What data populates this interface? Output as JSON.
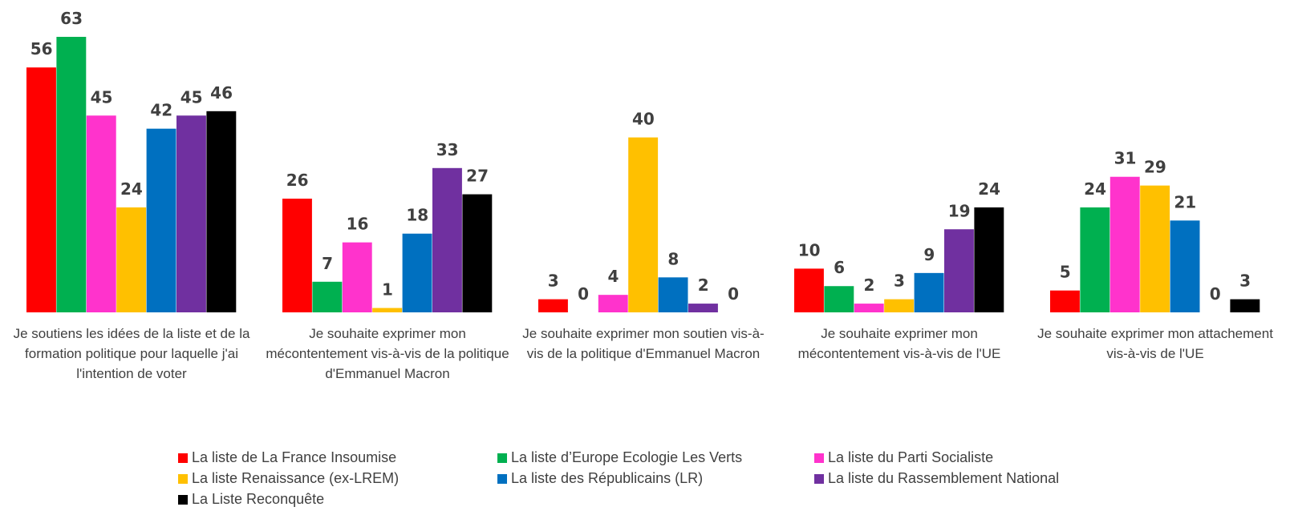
{
  "chart_data": {
    "type": "bar",
    "categories": [
      "Je soutiens les idées de la liste et de la formation politique pour laquelle j'ai l'intention de voter",
      "Je souhaite exprimer mon mécontentement vis-à-vis de la politique d'Emmanuel Macron",
      "Je souhaite exprimer mon soutien vis-à-vis de la politique d'Emmanuel Macron",
      "Je souhaite exprimer mon mécontentement vis-à-vis de l'UE",
      "Je souhaite exprimer mon attachement vis-à-vis de l'UE"
    ],
    "series": [
      {
        "name": "La liste de La France Insoumise",
        "color": "#ff0000",
        "values": [
          56,
          26,
          3,
          10,
          5
        ]
      },
      {
        "name": "La liste d’Europe Ecologie Les Verts",
        "color": "#00b050",
        "values": [
          63,
          7,
          0,
          6,
          24
        ]
      },
      {
        "name": "La liste du Parti Socialiste",
        "color": "#ff33cc",
        "values": [
          45,
          16,
          4,
          2,
          31
        ]
      },
      {
        "name": "La liste Renaissance (ex-LREM)",
        "color": "#ffc000",
        "values": [
          24,
          1,
          40,
          3,
          29
        ]
      },
      {
        "name": "La liste des Républicains (LR)",
        "color": "#0070c0",
        "values": [
          42,
          18,
          8,
          9,
          21
        ]
      },
      {
        "name": "La liste du Rassemblement National",
        "color": "#7030a0",
        "values": [
          45,
          33,
          2,
          19,
          0
        ]
      },
      {
        "name": "La Liste Reconquête",
        "color": "#000000",
        "values": [
          46,
          27,
          0,
          24,
          3
        ]
      }
    ]
  }
}
